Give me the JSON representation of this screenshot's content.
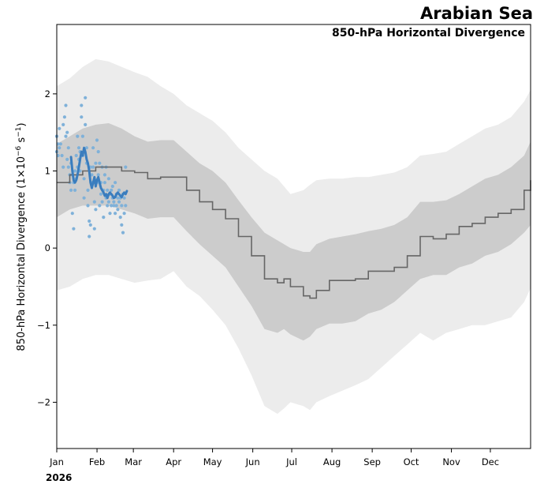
{
  "chart_data": {
    "type": "line",
    "title": "Arabian Sea",
    "subtitle": "850-hPa Horizontal Divergence",
    "ylabel": "850-hPa Horizontal Divergence (1×10⁻⁶ s⁻¹)",
    "ylabel_parts": {
      "main": "850-hPa Horizontal Divergence (1×10",
      "exp1": "−6",
      "mid": " s",
      "exp2": "−1",
      "end": ")"
    },
    "xlabel": "",
    "year_label": "2026",
    "xlim": [
      0,
      365
    ],
    "ylim": [
      -2.6,
      2.9
    ],
    "yticks": [
      {
        "value": -2,
        "label": "−2"
      },
      {
        "value": -1,
        "label": "−1"
      },
      {
        "value": 0,
        "label": "0"
      },
      {
        "value": 1,
        "label": "1"
      },
      {
        "value": 2,
        "label": "2"
      }
    ],
    "xticks": [
      {
        "day": 0,
        "label": "Jan"
      },
      {
        "day": 31,
        "label": "Feb"
      },
      {
        "day": 59,
        "label": "Mar"
      },
      {
        "day": 90,
        "label": "Apr"
      },
      {
        "day": 120,
        "label": "May"
      },
      {
        "day": 151,
        "label": "Jun"
      },
      {
        "day": 181,
        "label": "Jul"
      },
      {
        "day": 212,
        "label": "Aug"
      },
      {
        "day": 243,
        "label": "Sep"
      },
      {
        "day": 273,
        "label": "Oct"
      },
      {
        "day": 304,
        "label": "Nov"
      },
      {
        "day": 334,
        "label": "Dec"
      }
    ],
    "colors": {
      "outer_band": "#ececec",
      "inner_band": "#cccccc",
      "climatology_line": "#666666",
      "current_line": "#3a7dbe",
      "points": "#7fb1d9"
    },
    "climatology": {
      "day": [
        0,
        10,
        20,
        30,
        40,
        50,
        60,
        70,
        80,
        90,
        100,
        110,
        120,
        130,
        140,
        150,
        160,
        170,
        175,
        180,
        190,
        195,
        200,
        210,
        220,
        230,
        240,
        250,
        260,
        270,
        280,
        290,
        300,
        310,
        320,
        330,
        340,
        350,
        360,
        365
      ],
      "mean": [
        0.85,
        0.95,
        1.0,
        1.05,
        1.05,
        1.0,
        0.98,
        0.9,
        0.92,
        0.92,
        0.75,
        0.6,
        0.5,
        0.38,
        0.15,
        -0.1,
        -0.4,
        -0.45,
        -0.4,
        -0.5,
        -0.62,
        -0.65,
        -0.55,
        -0.42,
        -0.42,
        -0.4,
        -0.3,
        -0.3,
        -0.25,
        -0.1,
        0.15,
        0.12,
        0.18,
        0.28,
        0.32,
        0.4,
        0.45,
        0.5,
        0.75,
        0.88
      ],
      "p25": [
        0.4,
        0.5,
        0.55,
        0.55,
        0.55,
        0.5,
        0.45,
        0.38,
        0.4,
        0.4,
        0.22,
        0.05,
        -0.1,
        -0.25,
        -0.5,
        -0.75,
        -1.05,
        -1.1,
        -1.05,
        -1.12,
        -1.2,
        -1.15,
        -1.05,
        -0.98,
        -0.98,
        -0.95,
        -0.85,
        -0.8,
        -0.7,
        -0.55,
        -0.4,
        -0.35,
        -0.35,
        -0.25,
        -0.2,
        -0.1,
        -0.05,
        0.05,
        0.2,
        0.3
      ],
      "p75": [
        1.35,
        1.45,
        1.55,
        1.6,
        1.62,
        1.55,
        1.45,
        1.38,
        1.4,
        1.4,
        1.25,
        1.1,
        1.0,
        0.85,
        0.62,
        0.4,
        0.2,
        0.1,
        0.05,
        0.0,
        -0.05,
        -0.05,
        0.05,
        0.12,
        0.15,
        0.18,
        0.22,
        0.25,
        0.3,
        0.4,
        0.6,
        0.6,
        0.62,
        0.7,
        0.8,
        0.9,
        0.95,
        1.05,
        1.2,
        1.38
      ],
      "p05": [
        -0.55,
        -0.5,
        -0.4,
        -0.35,
        -0.35,
        -0.4,
        -0.45,
        -0.42,
        -0.4,
        -0.3,
        -0.5,
        -0.62,
        -0.8,
        -1.0,
        -1.3,
        -1.65,
        -2.05,
        -2.15,
        -2.08,
        -2.0,
        -2.05,
        -2.1,
        -2.0,
        -1.92,
        -1.85,
        -1.78,
        -1.7,
        -1.55,
        -1.4,
        -1.25,
        -1.1,
        -1.2,
        -1.1,
        -1.05,
        -1.0,
        -1.0,
        -0.95,
        -0.9,
        -0.7,
        -0.52
      ],
      "p95": [
        2.1,
        2.2,
        2.35,
        2.45,
        2.42,
        2.35,
        2.28,
        2.22,
        2.1,
        2.0,
        1.85,
        1.75,
        1.65,
        1.5,
        1.3,
        1.15,
        1.0,
        0.9,
        0.8,
        0.7,
        0.75,
        0.82,
        0.88,
        0.9,
        0.9,
        0.92,
        0.92,
        0.95,
        0.98,
        1.05,
        1.2,
        1.22,
        1.25,
        1.35,
        1.45,
        1.55,
        1.6,
        1.7,
        1.9,
        2.05
      ]
    },
    "current": {
      "name": "",
      "day": [
        11,
        12,
        13,
        14,
        15,
        16,
        17,
        18,
        19,
        20,
        21,
        22,
        23,
        24,
        25,
        26,
        27,
        28,
        29,
        30,
        31,
        32,
        33,
        34,
        35,
        36,
        37,
        38,
        39,
        40,
        41,
        42,
        43,
        44,
        45,
        46,
        47,
        48,
        49,
        50,
        51,
        52,
        53,
        54
      ],
      "value": [
        1.18,
        1.0,
        0.88,
        0.85,
        0.88,
        0.95,
        1.05,
        1.15,
        1.25,
        1.2,
        1.3,
        1.25,
        1.15,
        1.1,
        1.0,
        0.85,
        0.78,
        0.85,
        0.92,
        0.8,
        0.88,
        0.92,
        0.85,
        0.78,
        0.75,
        0.72,
        0.68,
        0.7,
        0.65,
        0.7,
        0.72,
        0.7,
        0.68,
        0.65,
        0.66,
        0.7,
        0.72,
        0.7,
        0.68,
        0.66,
        0.7,
        0.72,
        0.7,
        0.74
      ]
    },
    "members": {
      "day": [
        0,
        0,
        1,
        1,
        2,
        2,
        3,
        4,
        5,
        5,
        6,
        7,
        7,
        8,
        8,
        9,
        9,
        10,
        10,
        11,
        11,
        12,
        12,
        13,
        13,
        14,
        14,
        15,
        15,
        16,
        16,
        17,
        17,
        18,
        18,
        19,
        19,
        20,
        20,
        21,
        21,
        22,
        22,
        23,
        23,
        24,
        24,
        25,
        25,
        26,
        26,
        27,
        27,
        28,
        28,
        29,
        29,
        30,
        30,
        31,
        31,
        32,
        32,
        33,
        33,
        34,
        34,
        35,
        35,
        36,
        36,
        37,
        37,
        38,
        38,
        39,
        39,
        40,
        40,
        41,
        41,
        42,
        42,
        43,
        43,
        44,
        44,
        45,
        45,
        46,
        46,
        47,
        47,
        48,
        48,
        49,
        49,
        50,
        50,
        51,
        51,
        52,
        52,
        53,
        53
      ],
      "value": [
        1.45,
        1.25,
        1.35,
        1.2,
        1.55,
        1.3,
        1.35,
        1.2,
        1.05,
        1.6,
        1.7,
        1.85,
        1.45,
        1.5,
        1.15,
        1.3,
        1.05,
        0.95,
        0.85,
        0.75,
        1.1,
        0.45,
        0.95,
        0.25,
        0.85,
        0.75,
        1.0,
        0.9,
        1.2,
        1.05,
        1.45,
        1.3,
        1.15,
        1.0,
        1.25,
        1.85,
        1.7,
        1.45,
        1.2,
        0.9,
        0.65,
        1.95,
        1.6,
        1.3,
        1.1,
        0.75,
        0.55,
        0.35,
        0.15,
        0.3,
        1.05,
        0.85,
        0.95,
        1.3,
        1.05,
        0.6,
        0.25,
        0.5,
        1.1,
        1.4,
        0.85,
        1.25,
        0.95,
        1.1,
        0.55,
        0.85,
        0.7,
        1.05,
        0.6,
        0.75,
        0.4,
        0.85,
        0.95,
        0.65,
        1.05,
        0.75,
        0.55,
        0.9,
        0.6,
        0.7,
        0.45,
        0.55,
        0.75,
        0.8,
        0.65,
        0.55,
        0.6,
        0.85,
        0.45,
        0.7,
        0.55,
        0.65,
        0.5,
        0.75,
        0.6,
        0.65,
        0.4,
        0.3,
        0.55,
        0.7,
        0.2,
        0.45,
        0.65,
        1.05,
        0.55
      ]
    }
  }
}
